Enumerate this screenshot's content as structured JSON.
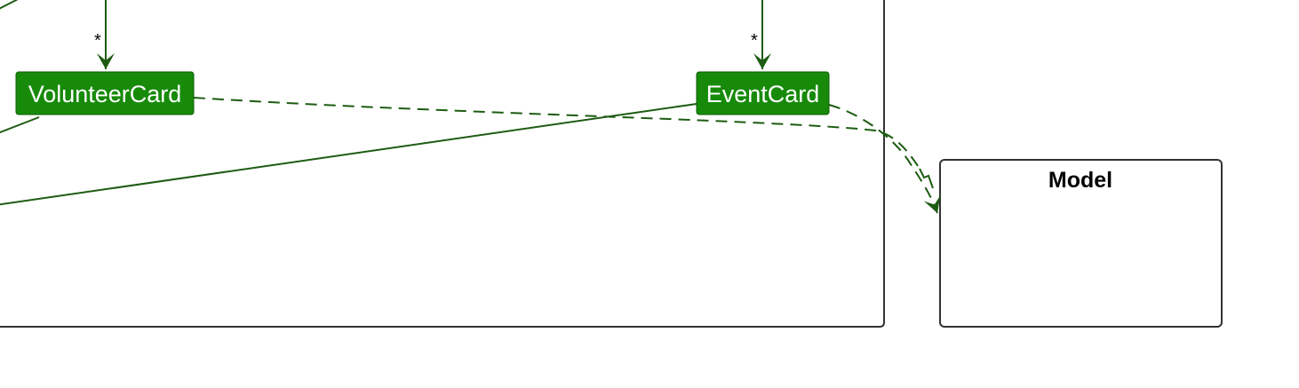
{
  "colors": {
    "node_fill": "#178a0a",
    "edge": "#1d5c12",
    "frame": "#333333",
    "background": "#ffffff"
  },
  "nodes": {
    "volunteer_card": "VolunteerCard",
    "event_card": "EventCard"
  },
  "packages": {
    "model": "Model"
  },
  "multiplicities": {
    "volunteer_card": "*",
    "event_card": "*"
  }
}
